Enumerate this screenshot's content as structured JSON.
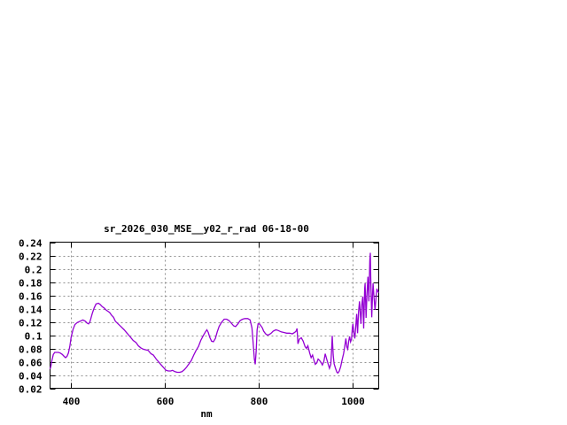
{
  "chart": {
    "title": "sr_2026_030_MSE__y02_r_rad 06-18-00",
    "xlabel": "nm"
  },
  "chart_data": {
    "type": "line",
    "title": "sr_2026_030_MSE__y02_r_rad 06-18-00",
    "xlabel": "nm",
    "ylabel": "",
    "x_range": [
      355,
      1055
    ],
    "y_range": [
      0.02,
      0.24
    ],
    "x_ticks": [
      400,
      600,
      800,
      1000
    ],
    "x_tick_labels": [
      "400",
      "600",
      "800",
      "1000"
    ],
    "y_ticks": [
      0.02,
      0.04,
      0.06,
      0.08,
      0.1,
      0.12,
      0.14,
      0.16,
      0.18,
      0.2,
      0.22,
      0.24
    ],
    "y_tick_labels": [
      "0.02",
      "0.04",
      "0.06",
      "0.08",
      "0.1",
      "0.12",
      "0.14",
      "0.16",
      "0.18",
      "0.2",
      "0.22",
      "0.24"
    ],
    "grid": true,
    "legend": "none",
    "line_color": "#9400D3",
    "grid_color": "#909090",
    "border_color": "#000000",
    "series": [
      {
        "points": [
          [
            355,
            0.049
          ],
          [
            357,
            0.054
          ],
          [
            359,
            0.062
          ],
          [
            362,
            0.071
          ],
          [
            365,
            0.074
          ],
          [
            369,
            0.074
          ],
          [
            373,
            0.074
          ],
          [
            377,
            0.073
          ],
          [
            381,
            0.071
          ],
          [
            385,
            0.068
          ],
          [
            388,
            0.066
          ],
          [
            391,
            0.068
          ],
          [
            394,
            0.073
          ],
          [
            397,
            0.083
          ],
          [
            400,
            0.097
          ],
          [
            404,
            0.109
          ],
          [
            408,
            0.116
          ],
          [
            413,
            0.119
          ],
          [
            419,
            0.121
          ],
          [
            425,
            0.123
          ],
          [
            430,
            0.121
          ],
          [
            434,
            0.118
          ],
          [
            437,
            0.117
          ],
          [
            440,
            0.12
          ],
          [
            445,
            0.133
          ],
          [
            449,
            0.141
          ],
          [
            453,
            0.147
          ],
          [
            458,
            0.148
          ],
          [
            462,
            0.146
          ],
          [
            466,
            0.143
          ],
          [
            470,
            0.141
          ],
          [
            474,
            0.138
          ],
          [
            478,
            0.136
          ],
          [
            482,
            0.134
          ],
          [
            486,
            0.13
          ],
          [
            490,
            0.127
          ],
          [
            494,
            0.121
          ],
          [
            500,
            0.117
          ],
          [
            506,
            0.113
          ],
          [
            513,
            0.108
          ],
          [
            519,
            0.103
          ],
          [
            525,
            0.098
          ],
          [
            532,
            0.092
          ],
          [
            538,
            0.089
          ],
          [
            543,
            0.084
          ],
          [
            548,
            0.081
          ],
          [
            553,
            0.079
          ],
          [
            558,
            0.078
          ],
          [
            564,
            0.077
          ],
          [
            570,
            0.072
          ],
          [
            575,
            0.07
          ],
          [
            581,
            0.064
          ],
          [
            587,
            0.059
          ],
          [
            592,
            0.055
          ],
          [
            597,
            0.051
          ],
          [
            602,
            0.047
          ],
          [
            607,
            0.046
          ],
          [
            612,
            0.046
          ],
          [
            616,
            0.047
          ],
          [
            621,
            0.045
          ],
          [
            626,
            0.044
          ],
          [
            631,
            0.044
          ],
          [
            636,
            0.045
          ],
          [
            641,
            0.048
          ],
          [
            646,
            0.052
          ],
          [
            651,
            0.057
          ],
          [
            656,
            0.062
          ],
          [
            661,
            0.07
          ],
          [
            666,
            0.077
          ],
          [
            671,
            0.083
          ],
          [
            676,
            0.092
          ],
          [
            681,
            0.099
          ],
          [
            686,
            0.105
          ],
          [
            689,
            0.108
          ],
          [
            692,
            0.104
          ],
          [
            695,
            0.097
          ],
          [
            699,
            0.091
          ],
          [
            703,
            0.09
          ],
          [
            707,
            0.095
          ],
          [
            711,
            0.105
          ],
          [
            715,
            0.113
          ],
          [
            720,
            0.119
          ],
          [
            726,
            0.124
          ],
          [
            731,
            0.124
          ],
          [
            736,
            0.122
          ],
          [
            741,
            0.118
          ],
          [
            746,
            0.114
          ],
          [
            750,
            0.113
          ],
          [
            755,
            0.117
          ],
          [
            760,
            0.122
          ],
          [
            765,
            0.124
          ],
          [
            770,
            0.125
          ],
          [
            776,
            0.125
          ],
          [
            781,
            0.123
          ],
          [
            785,
            0.111
          ],
          [
            788,
            0.084
          ],
          [
            790,
            0.064
          ],
          [
            792,
            0.056
          ],
          [
            794,
            0.077
          ],
          [
            796,
            0.108
          ],
          [
            798,
            0.117
          ],
          [
            801,
            0.117
          ],
          [
            804,
            0.114
          ],
          [
            807,
            0.111
          ],
          [
            810,
            0.106
          ],
          [
            814,
            0.102
          ],
          [
            818,
            0.1
          ],
          [
            822,
            0.101
          ],
          [
            826,
            0.103
          ],
          [
            830,
            0.106
          ],
          [
            836,
            0.108
          ],
          [
            841,
            0.107
          ],
          [
            847,
            0.105
          ],
          [
            853,
            0.104
          ],
          [
            859,
            0.103
          ],
          [
            865,
            0.103
          ],
          [
            871,
            0.102
          ],
          [
            876,
            0.104
          ],
          [
            879,
            0.106
          ],
          [
            881,
            0.11
          ],
          [
            883,
            0.087
          ],
          [
            886,
            0.094
          ],
          [
            890,
            0.096
          ],
          [
            894,
            0.091
          ],
          [
            898,
            0.083
          ],
          [
            901,
            0.08
          ],
          [
            904,
            0.084
          ],
          [
            908,
            0.073
          ],
          [
            911,
            0.066
          ],
          [
            914,
            0.07
          ],
          [
            917,
            0.062
          ],
          [
            920,
            0.056
          ],
          [
            923,
            0.058
          ],
          [
            926,
            0.064
          ],
          [
            929,
            0.062
          ],
          [
            932,
            0.059
          ],
          [
            935,
            0.055
          ],
          [
            938,
            0.06
          ],
          [
            941,
            0.072
          ],
          [
            944,
            0.064
          ],
          [
            947,
            0.057
          ],
          [
            950,
            0.05
          ],
          [
            953,
            0.056
          ],
          [
            955,
            0.083
          ],
          [
            956,
            0.099
          ],
          [
            958,
            0.07
          ],
          [
            960,
            0.057
          ],
          [
            963,
            0.05
          ],
          [
            966,
            0.044
          ],
          [
            968,
            0.043
          ],
          [
            971,
            0.046
          ],
          [
            974,
            0.053
          ],
          [
            977,
            0.063
          ],
          [
            980,
            0.072
          ],
          [
            982,
            0.08
          ],
          [
            985,
            0.095
          ],
          [
            987,
            0.082
          ],
          [
            989,
            0.079
          ],
          [
            991,
            0.091
          ],
          [
            993,
            0.098
          ],
          [
            995,
            0.09
          ],
          [
            997,
            0.094
          ],
          [
            999,
            0.112
          ],
          [
            1000,
            0.117
          ],
          [
            1002,
            0.104
          ],
          [
            1004,
            0.095
          ],
          [
            1006,
            0.112
          ],
          [
            1008,
            0.132
          ],
          [
            1010,
            0.103
          ],
          [
            1012,
            0.135
          ],
          [
            1014,
            0.151
          ],
          [
            1016,
            0.13
          ],
          [
            1017,
            0.117
          ],
          [
            1019,
            0.146
          ],
          [
            1021,
            0.158
          ],
          [
            1023,
            0.11
          ],
          [
            1025,
            0.17
          ],
          [
            1026,
            0.178
          ],
          [
            1028,
            0.126
          ],
          [
            1030,
            0.164
          ],
          [
            1032,
            0.188
          ],
          [
            1034,
            0.151
          ],
          [
            1036,
            0.212
          ],
          [
            1037,
            0.224
          ],
          [
            1038,
            0.185
          ],
          [
            1040,
            0.127
          ],
          [
            1042,
            0.164
          ],
          [
            1043,
            0.178
          ],
          [
            1045,
            0.156
          ],
          [
            1047,
            0.138
          ],
          [
            1049,
            0.154
          ],
          [
            1051,
            0.17
          ],
          [
            1053,
            0.166
          ],
          [
            1055,
            0.164
          ]
        ]
      }
    ]
  }
}
